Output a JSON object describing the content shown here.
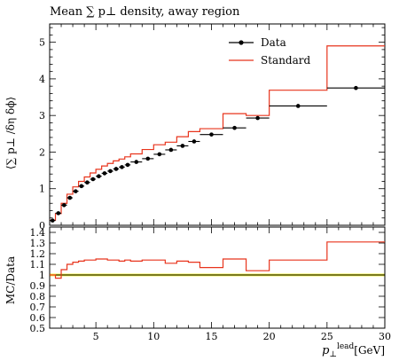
{
  "chart_data": [
    {
      "type": "line",
      "title": "Mean ∑ p⊥ density, away region",
      "ylabel": "⟨∑ p⊥ /δη δϕ⟩",
      "xlim": [
        1,
        30
      ],
      "ylim": [
        0,
        5.5
      ],
      "yticks": [
        "0",
        "1",
        "2",
        "3",
        "4",
        "5"
      ],
      "legend_position": "top-right",
      "series": [
        {
          "name": "Data",
          "style": "points-with-xerr",
          "color": "#000000",
          "x_low": [
            1,
            1.5,
            2,
            2.5,
            3,
            3.5,
            4,
            4.5,
            5,
            5.5,
            6,
            6.5,
            7,
            7.5,
            8,
            9,
            10,
            11,
            12,
            13,
            14,
            16,
            18,
            20,
            25
          ],
          "x_high": [
            1.5,
            2,
            2.5,
            3,
            3.5,
            4,
            4.5,
            5,
            5.5,
            6,
            6.5,
            7,
            7.5,
            8,
            9,
            10,
            11,
            12,
            13,
            14,
            16,
            18,
            20,
            25,
            30
          ],
          "x": [
            1.25,
            1.75,
            2.25,
            2.75,
            3.25,
            3.75,
            4.25,
            4.75,
            5.25,
            5.75,
            6.25,
            6.75,
            7.25,
            7.75,
            8.5,
            9.5,
            10.5,
            11.5,
            12.5,
            13.5,
            15,
            17,
            19,
            22.5,
            27.5
          ],
          "y": [
            0.13,
            0.33,
            0.55,
            0.75,
            0.93,
            1.07,
            1.17,
            1.26,
            1.34,
            1.42,
            1.48,
            1.54,
            1.59,
            1.65,
            1.73,
            1.82,
            1.94,
            2.06,
            2.17,
            2.29,
            2.48,
            2.66,
            2.93,
            3.26,
            3.75
          ]
        },
        {
          "name": "Standard",
          "style": "step",
          "color": "#e8341c",
          "edges": [
            1,
            1.5,
            2,
            2.5,
            3,
            3.5,
            4,
            4.5,
            5,
            5.5,
            6,
            6.5,
            7,
            7.5,
            8,
            9,
            10,
            11,
            12,
            13,
            14,
            16,
            18,
            20,
            25,
            30
          ],
          "values": [
            0.14,
            0.32,
            0.6,
            0.85,
            1.05,
            1.2,
            1.32,
            1.43,
            1.53,
            1.62,
            1.69,
            1.76,
            1.81,
            1.87,
            1.95,
            2.07,
            2.2,
            2.27,
            2.42,
            2.56,
            2.64,
            3.05,
            3.0,
            3.69,
            4.9
          ]
        }
      ]
    },
    {
      "type": "line",
      "ylabel": "MC/Data",
      "xlabel": "p⊥lead [GeV]",
      "xlabel_main": "p",
      "xlabel_sub": "⊥",
      "xlabel_sup": "lead",
      "xlabel_unit": "[GeV]",
      "xlim": [
        1,
        30
      ],
      "ylim": [
        0.5,
        1.45
      ],
      "yticks": [
        "0.5",
        "0.6",
        "0.7",
        "0.8",
        "0.9",
        "1",
        "1.1",
        "1.2",
        "1.3",
        "1.4"
      ],
      "xticks": [
        "5",
        "10",
        "15",
        "20",
        "25",
        "30"
      ],
      "reference": {
        "value": 1.0,
        "color": "#000000",
        "band_color": "#f4f43c"
      },
      "series": [
        {
          "name": "Standard",
          "style": "step",
          "color": "#e8341c",
          "edges": [
            1,
            1.5,
            2,
            2.5,
            3,
            3.5,
            4,
            4.5,
            5,
            5.5,
            6,
            6.5,
            7,
            7.5,
            8,
            9,
            10,
            11,
            12,
            13,
            14,
            16,
            18,
            20,
            25,
            30
          ],
          "values": [
            1.0,
            0.97,
            1.05,
            1.1,
            1.12,
            1.13,
            1.14,
            1.14,
            1.15,
            1.15,
            1.14,
            1.14,
            1.13,
            1.14,
            1.13,
            1.14,
            1.14,
            1.11,
            1.13,
            1.12,
            1.07,
            1.15,
            1.04,
            1.14,
            1.31
          ]
        }
      ]
    }
  ]
}
